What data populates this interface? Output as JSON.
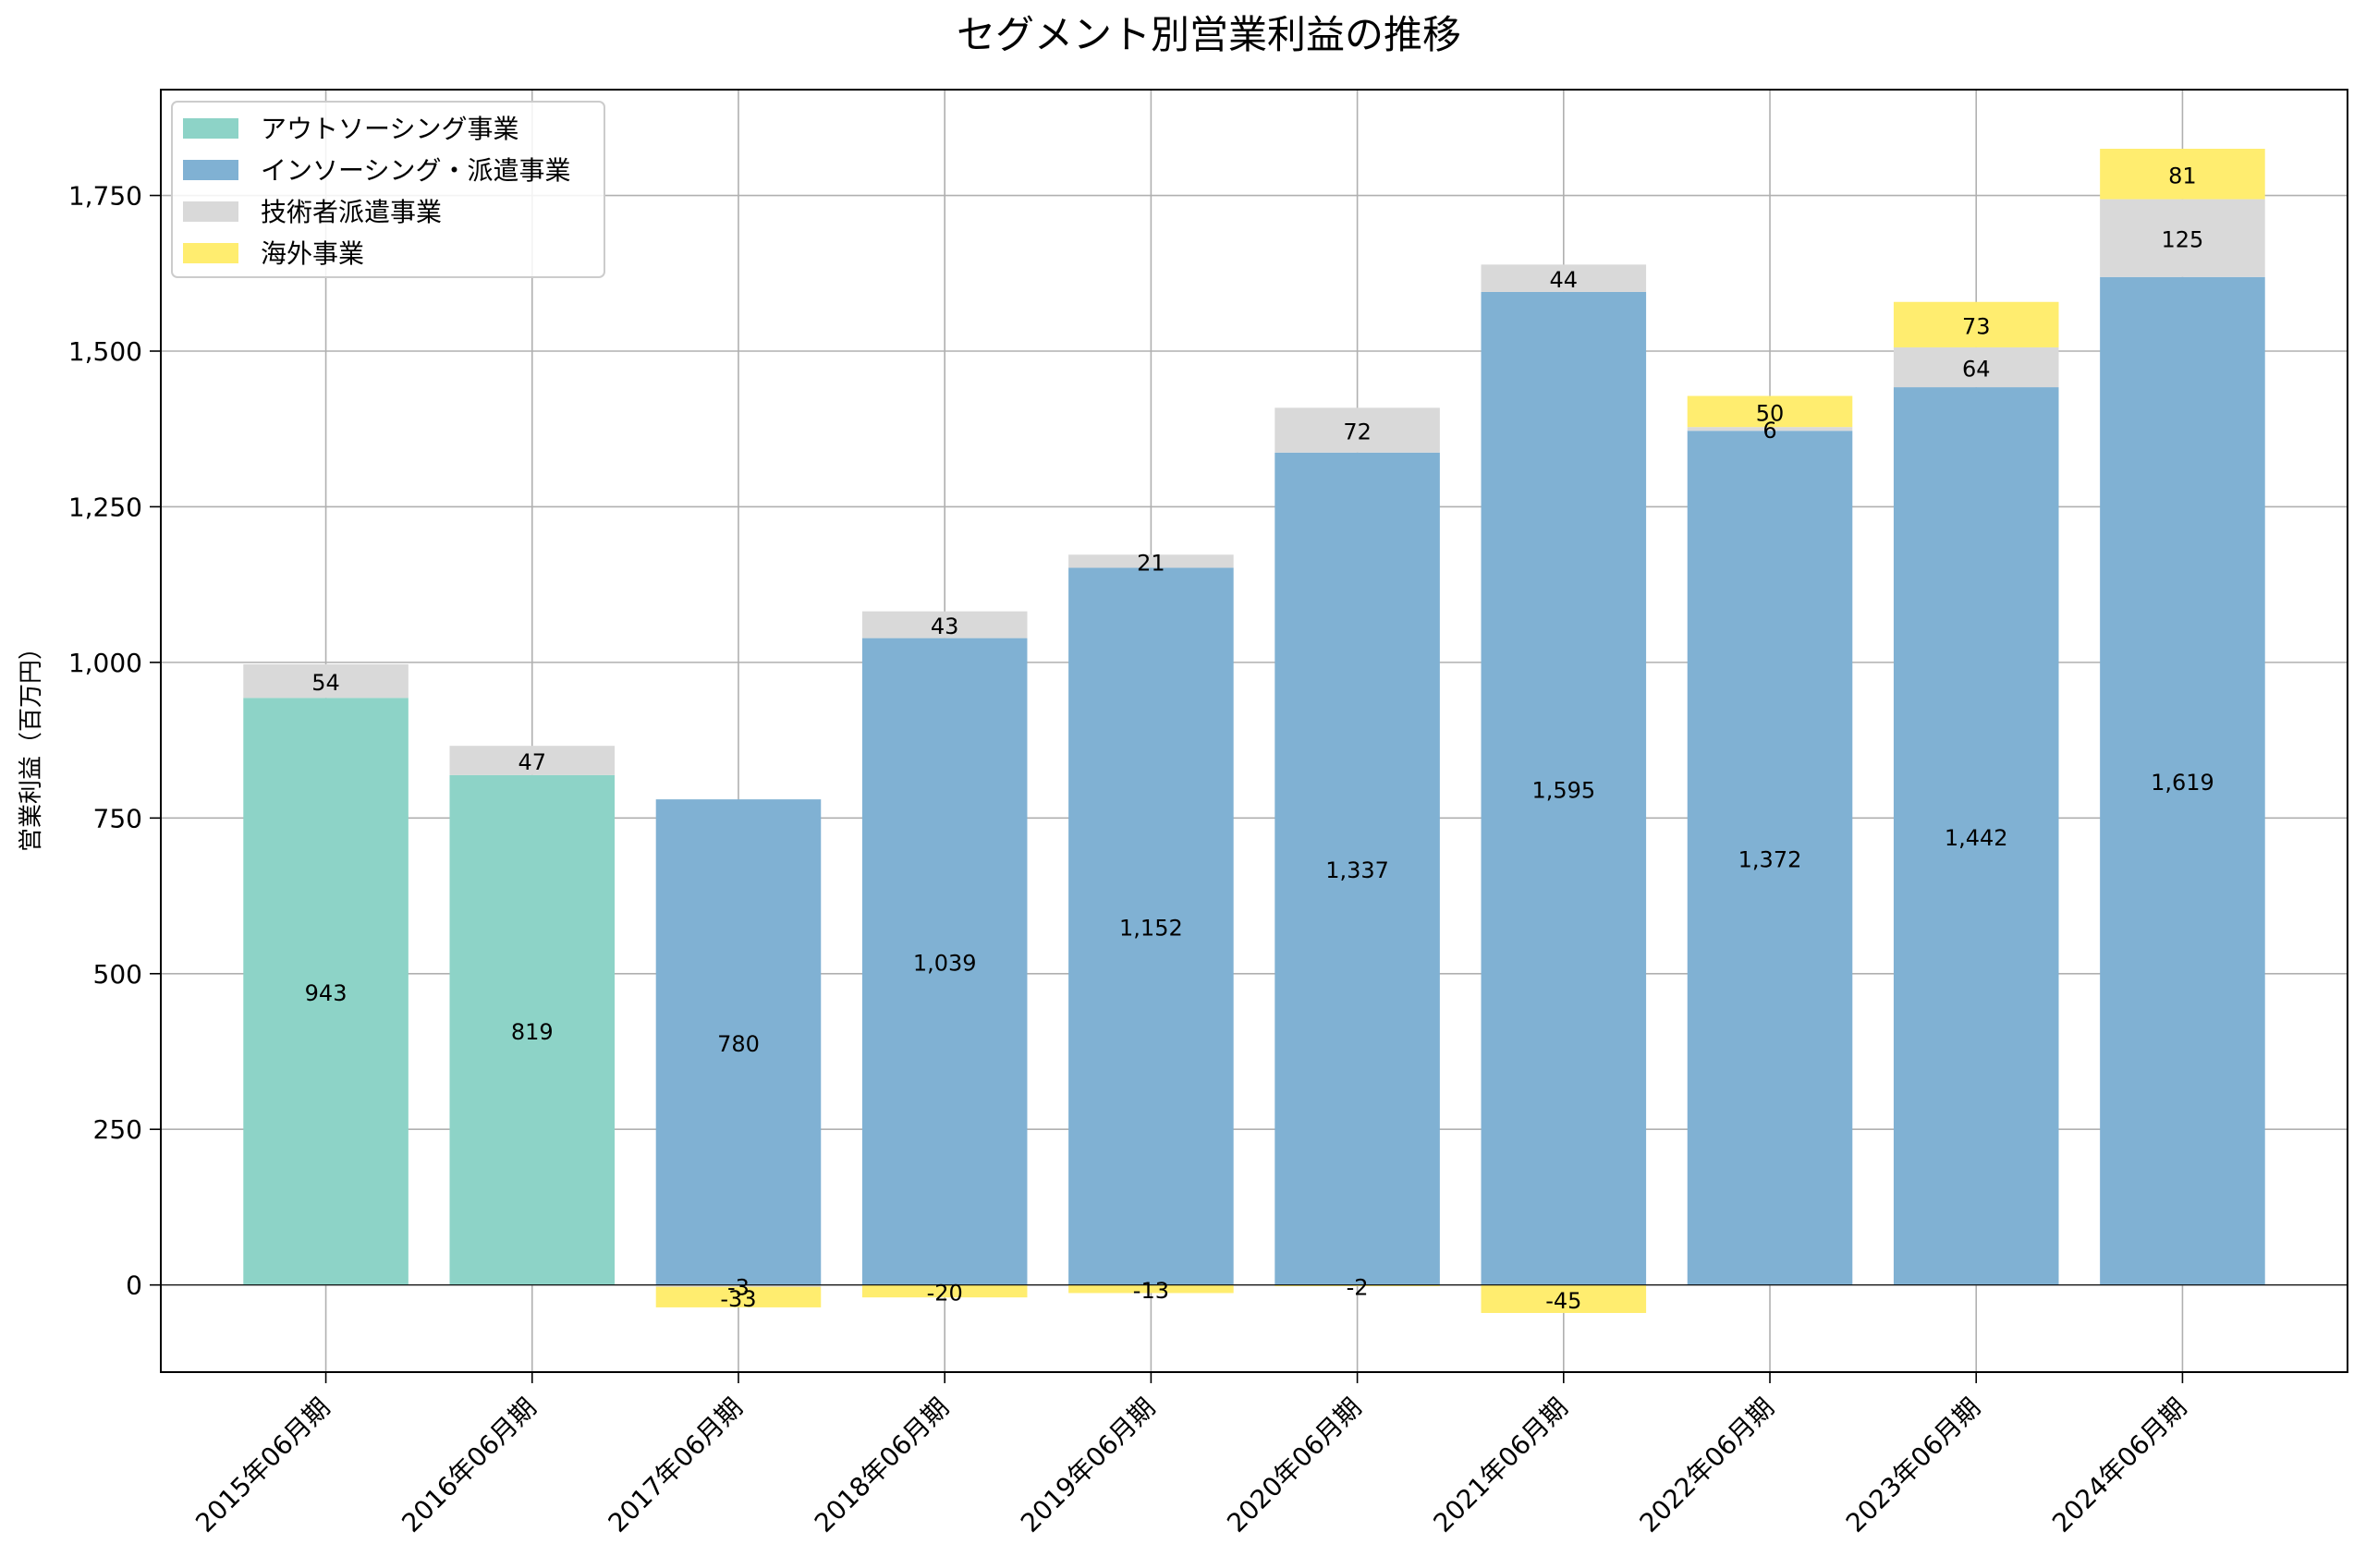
{
  "chart_data": {
    "type": "bar",
    "stacked": true,
    "title": "セグメント別営業利益の推移",
    "xlabel": "",
    "ylabel": "営業利益（百万円）",
    "ylim": [
      -140,
      1920
    ],
    "yticks": [
      "-",
      "0",
      "250",
      "500",
      "750",
      "1,000",
      "1,250",
      "1,500",
      "1,750"
    ],
    "ytick_values": [
      null,
      0,
      250,
      500,
      750,
      1000,
      1250,
      1500,
      1750
    ],
    "grid": true,
    "legend_position": "top-left",
    "categories": [
      "2015年06月期",
      "2016年06月期",
      "2017年06月期",
      "2018年06月期",
      "2019年06月期",
      "2020年06月期",
      "2021年06月期",
      "2022年06月期",
      "2023年06月期",
      "2024年06月期"
    ],
    "series": [
      {
        "name": "アウトソーシング事業",
        "color": "#8dd3c7",
        "values": [
          943,
          819,
          null,
          null,
          null,
          null,
          null,
          null,
          null,
          null
        ],
        "labels": [
          "943",
          "819",
          "",
          "",
          "",
          "",
          "",
          "",
          "",
          ""
        ]
      },
      {
        "name": "インソーシング・派遣事業",
        "color": "#80b1d3",
        "values": [
          null,
          null,
          780,
          1039,
          1152,
          1337,
          1595,
          1372,
          1442,
          1619
        ],
        "labels": [
          "",
          "",
          "780",
          "1,039",
          "1,152",
          "1,337",
          "1,595",
          "1,372",
          "1,442",
          "1,619"
        ]
      },
      {
        "name": "技術者派遣事業",
        "color": "#d9d9d9",
        "values": [
          54,
          47,
          -3,
          43,
          21,
          72,
          44,
          6,
          64,
          125
        ],
        "labels": [
          "54",
          "47",
          "-3",
          "43",
          "21",
          "72",
          "44",
          "6",
          "64",
          "125"
        ]
      },
      {
        "name": "海外事業",
        "color": "#ffed6f",
        "values": [
          null,
          null,
          -33,
          -20,
          -13,
          -2,
          -45,
          50,
          73,
          81
        ],
        "labels": [
          "",
          "",
          "-33",
          "-20",
          "-13",
          "-2",
          "-45",
          "50",
          "73",
          "81"
        ]
      }
    ]
  }
}
